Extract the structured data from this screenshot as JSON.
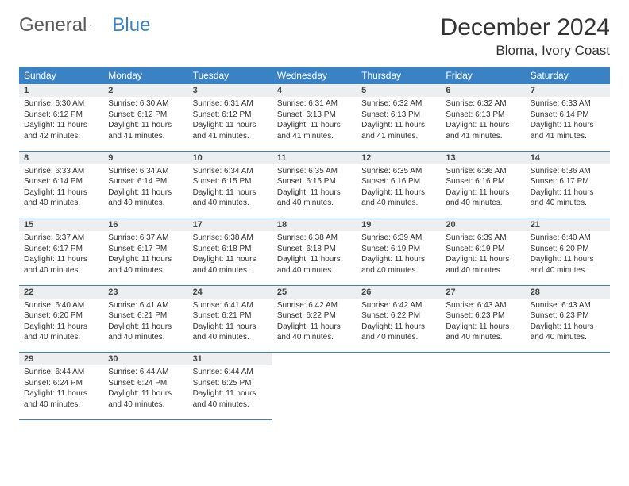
{
  "logo": {
    "text1": "General",
    "text2": "Blue"
  },
  "title": "December 2024",
  "location": "Bloma, Ivory Coast",
  "colors": {
    "header_bg": "#3b82c4",
    "header_text": "#ffffff",
    "daynum_bg": "#eceeef",
    "border": "#3b82c4",
    "logo_gray": "#5a5a5a",
    "logo_blue": "#3b82c4"
  },
  "weekdays": [
    "Sunday",
    "Monday",
    "Tuesday",
    "Wednesday",
    "Thursday",
    "Friday",
    "Saturday"
  ],
  "weeks": [
    [
      {
        "n": "1",
        "sr": "Sunrise: 6:30 AM",
        "ss": "Sunset: 6:12 PM",
        "dl": "Daylight: 11 hours and 42 minutes."
      },
      {
        "n": "2",
        "sr": "Sunrise: 6:30 AM",
        "ss": "Sunset: 6:12 PM",
        "dl": "Daylight: 11 hours and 41 minutes."
      },
      {
        "n": "3",
        "sr": "Sunrise: 6:31 AM",
        "ss": "Sunset: 6:12 PM",
        "dl": "Daylight: 11 hours and 41 minutes."
      },
      {
        "n": "4",
        "sr": "Sunrise: 6:31 AM",
        "ss": "Sunset: 6:13 PM",
        "dl": "Daylight: 11 hours and 41 minutes."
      },
      {
        "n": "5",
        "sr": "Sunrise: 6:32 AM",
        "ss": "Sunset: 6:13 PM",
        "dl": "Daylight: 11 hours and 41 minutes."
      },
      {
        "n": "6",
        "sr": "Sunrise: 6:32 AM",
        "ss": "Sunset: 6:13 PM",
        "dl": "Daylight: 11 hours and 41 minutes."
      },
      {
        "n": "7",
        "sr": "Sunrise: 6:33 AM",
        "ss": "Sunset: 6:14 PM",
        "dl": "Daylight: 11 hours and 41 minutes."
      }
    ],
    [
      {
        "n": "8",
        "sr": "Sunrise: 6:33 AM",
        "ss": "Sunset: 6:14 PM",
        "dl": "Daylight: 11 hours and 40 minutes."
      },
      {
        "n": "9",
        "sr": "Sunrise: 6:34 AM",
        "ss": "Sunset: 6:14 PM",
        "dl": "Daylight: 11 hours and 40 minutes."
      },
      {
        "n": "10",
        "sr": "Sunrise: 6:34 AM",
        "ss": "Sunset: 6:15 PM",
        "dl": "Daylight: 11 hours and 40 minutes."
      },
      {
        "n": "11",
        "sr": "Sunrise: 6:35 AM",
        "ss": "Sunset: 6:15 PM",
        "dl": "Daylight: 11 hours and 40 minutes."
      },
      {
        "n": "12",
        "sr": "Sunrise: 6:35 AM",
        "ss": "Sunset: 6:16 PM",
        "dl": "Daylight: 11 hours and 40 minutes."
      },
      {
        "n": "13",
        "sr": "Sunrise: 6:36 AM",
        "ss": "Sunset: 6:16 PM",
        "dl": "Daylight: 11 hours and 40 minutes."
      },
      {
        "n": "14",
        "sr": "Sunrise: 6:36 AM",
        "ss": "Sunset: 6:17 PM",
        "dl": "Daylight: 11 hours and 40 minutes."
      }
    ],
    [
      {
        "n": "15",
        "sr": "Sunrise: 6:37 AM",
        "ss": "Sunset: 6:17 PM",
        "dl": "Daylight: 11 hours and 40 minutes."
      },
      {
        "n": "16",
        "sr": "Sunrise: 6:37 AM",
        "ss": "Sunset: 6:17 PM",
        "dl": "Daylight: 11 hours and 40 minutes."
      },
      {
        "n": "17",
        "sr": "Sunrise: 6:38 AM",
        "ss": "Sunset: 6:18 PM",
        "dl": "Daylight: 11 hours and 40 minutes."
      },
      {
        "n": "18",
        "sr": "Sunrise: 6:38 AM",
        "ss": "Sunset: 6:18 PM",
        "dl": "Daylight: 11 hours and 40 minutes."
      },
      {
        "n": "19",
        "sr": "Sunrise: 6:39 AM",
        "ss": "Sunset: 6:19 PM",
        "dl": "Daylight: 11 hours and 40 minutes."
      },
      {
        "n": "20",
        "sr": "Sunrise: 6:39 AM",
        "ss": "Sunset: 6:19 PM",
        "dl": "Daylight: 11 hours and 40 minutes."
      },
      {
        "n": "21",
        "sr": "Sunrise: 6:40 AM",
        "ss": "Sunset: 6:20 PM",
        "dl": "Daylight: 11 hours and 40 minutes."
      }
    ],
    [
      {
        "n": "22",
        "sr": "Sunrise: 6:40 AM",
        "ss": "Sunset: 6:20 PM",
        "dl": "Daylight: 11 hours and 40 minutes."
      },
      {
        "n": "23",
        "sr": "Sunrise: 6:41 AM",
        "ss": "Sunset: 6:21 PM",
        "dl": "Daylight: 11 hours and 40 minutes."
      },
      {
        "n": "24",
        "sr": "Sunrise: 6:41 AM",
        "ss": "Sunset: 6:21 PM",
        "dl": "Daylight: 11 hours and 40 minutes."
      },
      {
        "n": "25",
        "sr": "Sunrise: 6:42 AM",
        "ss": "Sunset: 6:22 PM",
        "dl": "Daylight: 11 hours and 40 minutes."
      },
      {
        "n": "26",
        "sr": "Sunrise: 6:42 AM",
        "ss": "Sunset: 6:22 PM",
        "dl": "Daylight: 11 hours and 40 minutes."
      },
      {
        "n": "27",
        "sr": "Sunrise: 6:43 AM",
        "ss": "Sunset: 6:23 PM",
        "dl": "Daylight: 11 hours and 40 minutes."
      },
      {
        "n": "28",
        "sr": "Sunrise: 6:43 AM",
        "ss": "Sunset: 6:23 PM",
        "dl": "Daylight: 11 hours and 40 minutes."
      }
    ],
    [
      {
        "n": "29",
        "sr": "Sunrise: 6:44 AM",
        "ss": "Sunset: 6:24 PM",
        "dl": "Daylight: 11 hours and 40 minutes."
      },
      {
        "n": "30",
        "sr": "Sunrise: 6:44 AM",
        "ss": "Sunset: 6:24 PM",
        "dl": "Daylight: 11 hours and 40 minutes."
      },
      {
        "n": "31",
        "sr": "Sunrise: 6:44 AM",
        "ss": "Sunset: 6:25 PM",
        "dl": "Daylight: 11 hours and 40 minutes."
      },
      null,
      null,
      null,
      null
    ]
  ]
}
